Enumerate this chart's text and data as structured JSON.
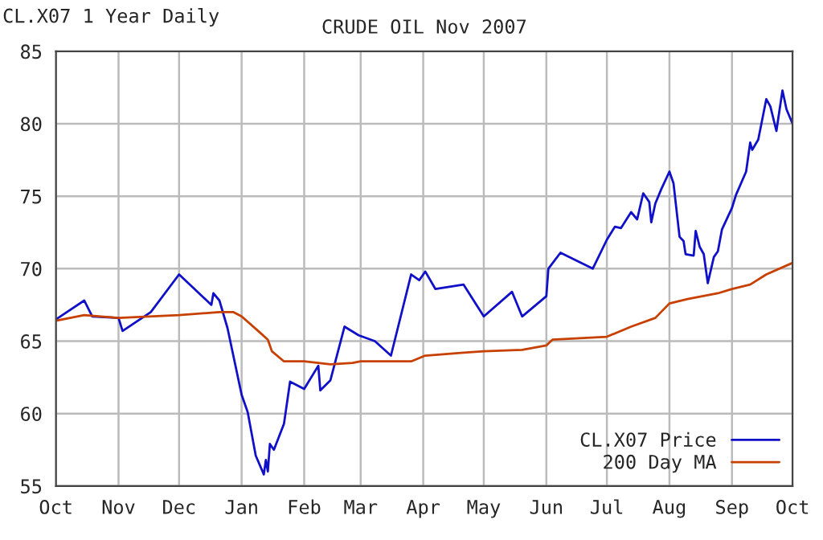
{
  "chart_data": {
    "type": "line",
    "title": "CRUDE OIL Nov 2007",
    "annotations": [
      "CL.X07 1 Year Daily"
    ],
    "xlim": [
      "2006-10-01",
      "2007-10-01"
    ],
    "xticks": [
      {
        "value": "2006-10-01",
        "label": "Oct"
      },
      {
        "value": "2006-11-01",
        "label": "Nov"
      },
      {
        "value": "2006-12-01",
        "label": "Dec"
      },
      {
        "value": "2007-01-01",
        "label": "Jan"
      },
      {
        "value": "2007-02-01",
        "label": "Feb"
      },
      {
        "value": "2007-03-01",
        "label": "Mar"
      },
      {
        "value": "2007-04-01",
        "label": "Apr"
      },
      {
        "value": "2007-05-01",
        "label": "May"
      },
      {
        "value": "2007-06-01",
        "label": "Jun"
      },
      {
        "value": "2007-07-01",
        "label": "Jul"
      },
      {
        "value": "2007-08-01",
        "label": "Aug"
      },
      {
        "value": "2007-09-01",
        "label": "Sep"
      },
      {
        "value": "2007-10-01",
        "label": "Oct"
      }
    ],
    "ylim": [
      55,
      85
    ],
    "yticks": [
      55,
      60,
      65,
      70,
      75,
      80,
      85
    ],
    "grid": true,
    "legend": "bottom right",
    "series": [
      {
        "name": "CL.X07 Price",
        "color": "#1010c8",
        "x": [
          "2006-10-01",
          "2006-10-15",
          "2006-10-19",
          "2006-11-01",
          "2006-11-03",
          "2006-11-17",
          "2006-12-01",
          "2006-12-17",
          "2006-12-18",
          "2006-12-21",
          "2006-12-25",
          "2007-01-01",
          "2007-01-04",
          "2007-01-08",
          "2007-01-12",
          "2007-01-13",
          "2007-01-14",
          "2007-01-15",
          "2007-01-17",
          "2007-01-22",
          "2007-01-25",
          "2007-02-01",
          "2007-02-08",
          "2007-02-09",
          "2007-02-14",
          "2007-02-21",
          "2007-02-28",
          "2007-03-08",
          "2007-03-16",
          "2007-03-26",
          "2007-03-30",
          "2007-04-02",
          "2007-04-07",
          "2007-04-21",
          "2007-05-01",
          "2007-05-15",
          "2007-05-20",
          "2007-06-01",
          "2007-06-02",
          "2007-06-08",
          "2007-06-24",
          "2007-07-01",
          "2007-07-05",
          "2007-07-08",
          "2007-07-13",
          "2007-07-16",
          "2007-07-19",
          "2007-07-22",
          "2007-07-23",
          "2007-07-25",
          "2007-07-28",
          "2007-08-01",
          "2007-08-03",
          "2007-08-06",
          "2007-08-08",
          "2007-08-09",
          "2007-08-13",
          "2007-08-14",
          "2007-08-16",
          "2007-08-18",
          "2007-08-20",
          "2007-08-23",
          "2007-08-25",
          "2007-08-27",
          "2007-09-01",
          "2007-09-03",
          "2007-09-08",
          "2007-09-10",
          "2007-09-11",
          "2007-09-14",
          "2007-09-18",
          "2007-09-20",
          "2007-09-23",
          "2007-09-26",
          "2007-09-28",
          "2007-10-01"
        ],
        "values": [
          66.5,
          67.8,
          66.7,
          66.6,
          65.7,
          67.0,
          69.6,
          67.5,
          68.3,
          67.8,
          65.9,
          61.3,
          60.1,
          57.1,
          55.8,
          56.8,
          56.0,
          57.9,
          57.5,
          59.3,
          62.2,
          61.7,
          63.3,
          61.6,
          62.3,
          66.0,
          65.4,
          65.0,
          64.0,
          69.6,
          69.2,
          69.8,
          68.6,
          68.9,
          66.7,
          68.4,
          66.7,
          68.1,
          70.0,
          71.1,
          70.0,
          72.0,
          72.9,
          72.8,
          73.9,
          73.4,
          75.2,
          74.6,
          73.2,
          74.5,
          75.5,
          76.7,
          75.9,
          72.2,
          71.9,
          71.0,
          70.9,
          72.6,
          71.5,
          71.0,
          69.0,
          70.8,
          71.2,
          72.7,
          74.2,
          75.1,
          76.7,
          78.7,
          78.2,
          78.9,
          81.7,
          81.2,
          79.5,
          82.3,
          81.0,
          80.0
        ]
      },
      {
        "name": "200 Day MA",
        "color": "#c84000",
        "x": [
          "2006-10-01",
          "2006-10-15",
          "2006-11-01",
          "2006-12-01",
          "2006-12-21",
          "2006-12-28",
          "2007-01-01",
          "2007-01-10",
          "2007-01-14",
          "2007-01-16",
          "2007-01-22",
          "2007-02-01",
          "2007-02-14",
          "2007-02-25",
          "2007-03-01",
          "2007-03-26",
          "2007-04-02",
          "2007-04-21",
          "2007-05-01",
          "2007-05-20",
          "2007-06-01",
          "2007-06-04",
          "2007-07-01",
          "2007-07-13",
          "2007-07-25",
          "2007-08-01",
          "2007-08-10",
          "2007-08-25",
          "2007-09-01",
          "2007-09-10",
          "2007-09-18",
          "2007-10-01"
        ],
        "values": [
          66.4,
          66.8,
          66.6,
          66.8,
          67.0,
          67.0,
          66.7,
          65.6,
          65.1,
          64.3,
          63.6,
          63.6,
          63.4,
          63.5,
          63.6,
          63.6,
          64.0,
          64.2,
          64.3,
          64.4,
          64.7,
          65.1,
          65.3,
          66.0,
          66.6,
          67.6,
          67.9,
          68.3,
          68.6,
          68.9,
          69.6,
          70.4
        ]
      }
    ]
  }
}
